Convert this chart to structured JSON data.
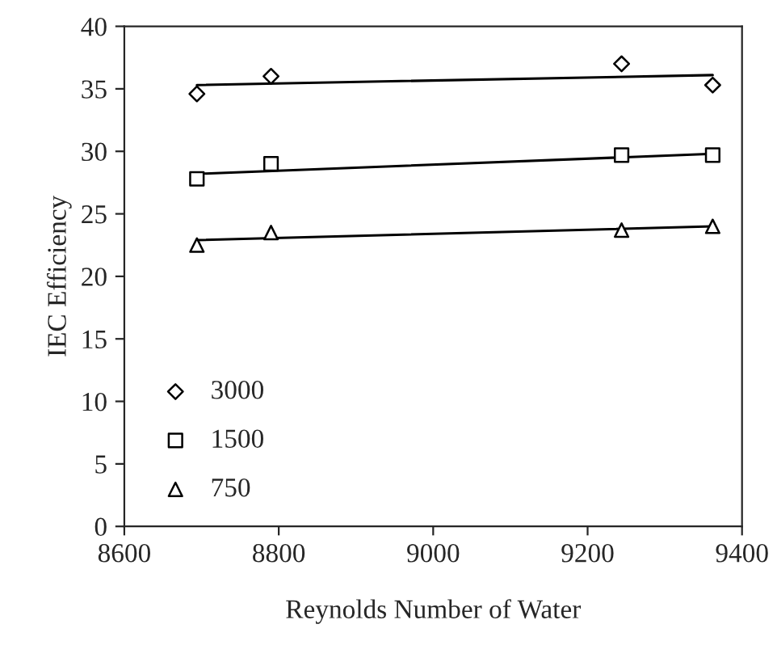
{
  "chart_data": {
    "type": "scatter",
    "xlabel": "Reynolds Number of Water",
    "ylabel": "IEC Efficiency",
    "xlim": [
      8600,
      9400
    ],
    "xticks": [
      8600,
      8800,
      9000,
      9200,
      9400
    ],
    "ylim": [
      0,
      40
    ],
    "yticks": [
      0,
      5,
      10,
      15,
      20,
      25,
      30,
      35,
      40
    ],
    "grid": false,
    "legend": "bottom left",
    "series": [
      {
        "name": "3000",
        "color": "#000000",
        "marker": "diamond",
        "x": [
          8694,
          8790,
          9244,
          9362
        ],
        "values": [
          34.6,
          36.0,
          37.0,
          35.3
        ]
      },
      {
        "name": "1500",
        "color": "#000000",
        "marker": "square",
        "x": [
          8694,
          8790,
          9244,
          9362
        ],
        "values": [
          27.8,
          29.0,
          29.7,
          29.7
        ]
      },
      {
        "name": "750",
        "color": "#000000",
        "marker": "triangle",
        "x": [
          8694,
          8790,
          9244,
          9362
        ],
        "values": [
          22.5,
          23.5,
          23.7,
          24.0
        ]
      },
      {
        "type": "line",
        "color": "#000000",
        "marker": "none",
        "line_style": "solid",
        "x": [
          8694,
          9362
        ],
        "values": [
          35.3,
          36.1
        ]
      },
      {
        "type": "line",
        "color": "#000000",
        "marker": "none",
        "line_style": "solid",
        "x": [
          8694,
          9362
        ],
        "values": [
          28.2,
          29.8
        ]
      },
      {
        "type": "line",
        "color": "#000000",
        "marker": "none",
        "line_style": "solid",
        "x": [
          8694,
          9362
        ],
        "values": [
          22.9,
          24.0
        ]
      }
    ]
  }
}
